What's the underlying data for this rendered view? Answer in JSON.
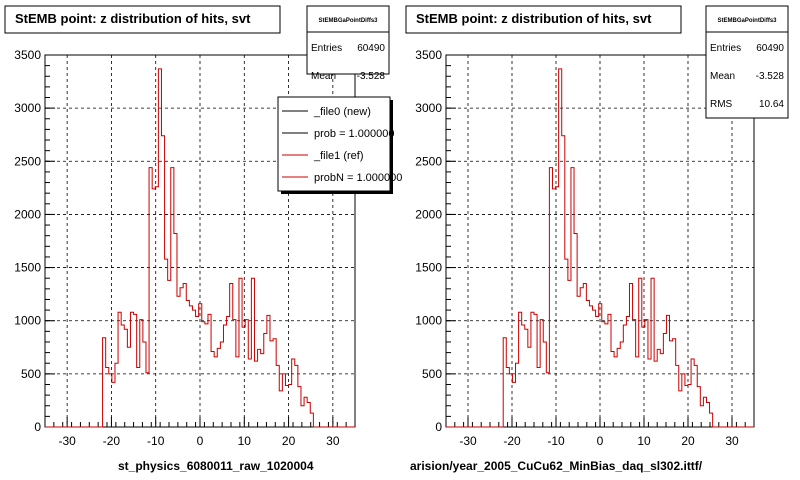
{
  "chart_data": [
    {
      "type": "bar",
      "title": "StEMB point: z distribution of hits, svt",
      "xlabel": "st_physics_6080011_raw_1020004",
      "ylabel": "",
      "xlim": [
        -35,
        35
      ],
      "ylim": [
        0,
        3500
      ],
      "xticks": [
        -30,
        -20,
        -10,
        0,
        10,
        20,
        30
      ],
      "yticks": [
        0,
        500,
        1000,
        1500,
        2000,
        2500,
        3000,
        3500
      ],
      "grid": true,
      "bin_edges_start": -22,
      "bin_width": 0.7,
      "series": [
        {
          "name": "_file0 (new)",
          "color": "#000000",
          "values": []
        },
        {
          "name": "_file1 (ref)",
          "color": "#cc0000",
          "values": [
            840,
            560,
            500,
            420,
            600,
            1080,
            960,
            920,
            750,
            1080,
            1060,
            560,
            1010,
            800,
            510,
            2440,
            2240,
            2260,
            3370,
            2740,
            1580,
            1380,
            2440,
            1820,
            1230,
            1310,
            1350,
            1190,
            1140,
            1100,
            1040,
            1160,
            990,
            970,
            1060,
            710,
            660,
            740,
            800,
            960,
            1040,
            1350,
            1010,
            660,
            1400,
            940,
            1010,
            640,
            1400,
            620,
            730,
            690,
            880,
            1050,
            810,
            830,
            580,
            340,
            500,
            390,
            400,
            640,
            580,
            380,
            200,
            280,
            230,
            130,
            0,
            0
          ]
        }
      ],
      "stats": {
        "header": "StEMBGaPointDiffs3",
        "rows": [
          {
            "label": "Entries",
            "value": "60490"
          },
          {
            "label": "Mean",
            "value": "-3.528"
          }
        ]
      },
      "legend": {
        "position": "top-right",
        "entries": [
          {
            "label": "_file0 (new)",
            "color": "#000000"
          },
          {
            "label": "prob = 1.000000",
            "color": "#000000"
          },
          {
            "label": "_file1 (ref)",
            "color": "#cc0000"
          },
          {
            "label": "probN = 1.000000",
            "color": "#cc0000"
          }
        ]
      }
    },
    {
      "type": "bar",
      "title": "StEMB point: z distribution of hits, svt",
      "xlabel": "arision/year_2005_CuCu62_MinBias_daq_sl302.ittf/",
      "ylabel": "",
      "xlim": [
        -35,
        35
      ],
      "ylim": [
        0,
        3500
      ],
      "xticks": [
        -30,
        -20,
        -10,
        0,
        10,
        20,
        30
      ],
      "yticks": [
        0,
        500,
        1000,
        1500,
        2000,
        2500,
        3000,
        3500
      ],
      "grid": true,
      "bin_edges_start": -22,
      "bin_width": 0.7,
      "series": [
        {
          "name": "",
          "color": "#cc0000",
          "values": [
            840,
            560,
            500,
            420,
            600,
            1080,
            960,
            920,
            750,
            1080,
            1060,
            560,
            1010,
            800,
            510,
            2440,
            2240,
            2260,
            3370,
            2740,
            1580,
            1380,
            2440,
            1820,
            1230,
            1310,
            1350,
            1190,
            1140,
            1100,
            1040,
            1160,
            990,
            970,
            1060,
            710,
            660,
            740,
            800,
            960,
            1040,
            1350,
            1010,
            660,
            1400,
            940,
            1010,
            640,
            1400,
            620,
            730,
            690,
            880,
            1050,
            810,
            830,
            580,
            340,
            500,
            390,
            400,
            640,
            580,
            380,
            200,
            280,
            230,
            130,
            0,
            0
          ]
        }
      ],
      "stats": {
        "header": "StEMBGaPointDiffs3",
        "rows": [
          {
            "label": "Entries",
            "value": "60490"
          },
          {
            "label": "Mean",
            "value": "-3.528"
          },
          {
            "label": "RMS",
            "value": "10.64"
          }
        ]
      }
    }
  ]
}
